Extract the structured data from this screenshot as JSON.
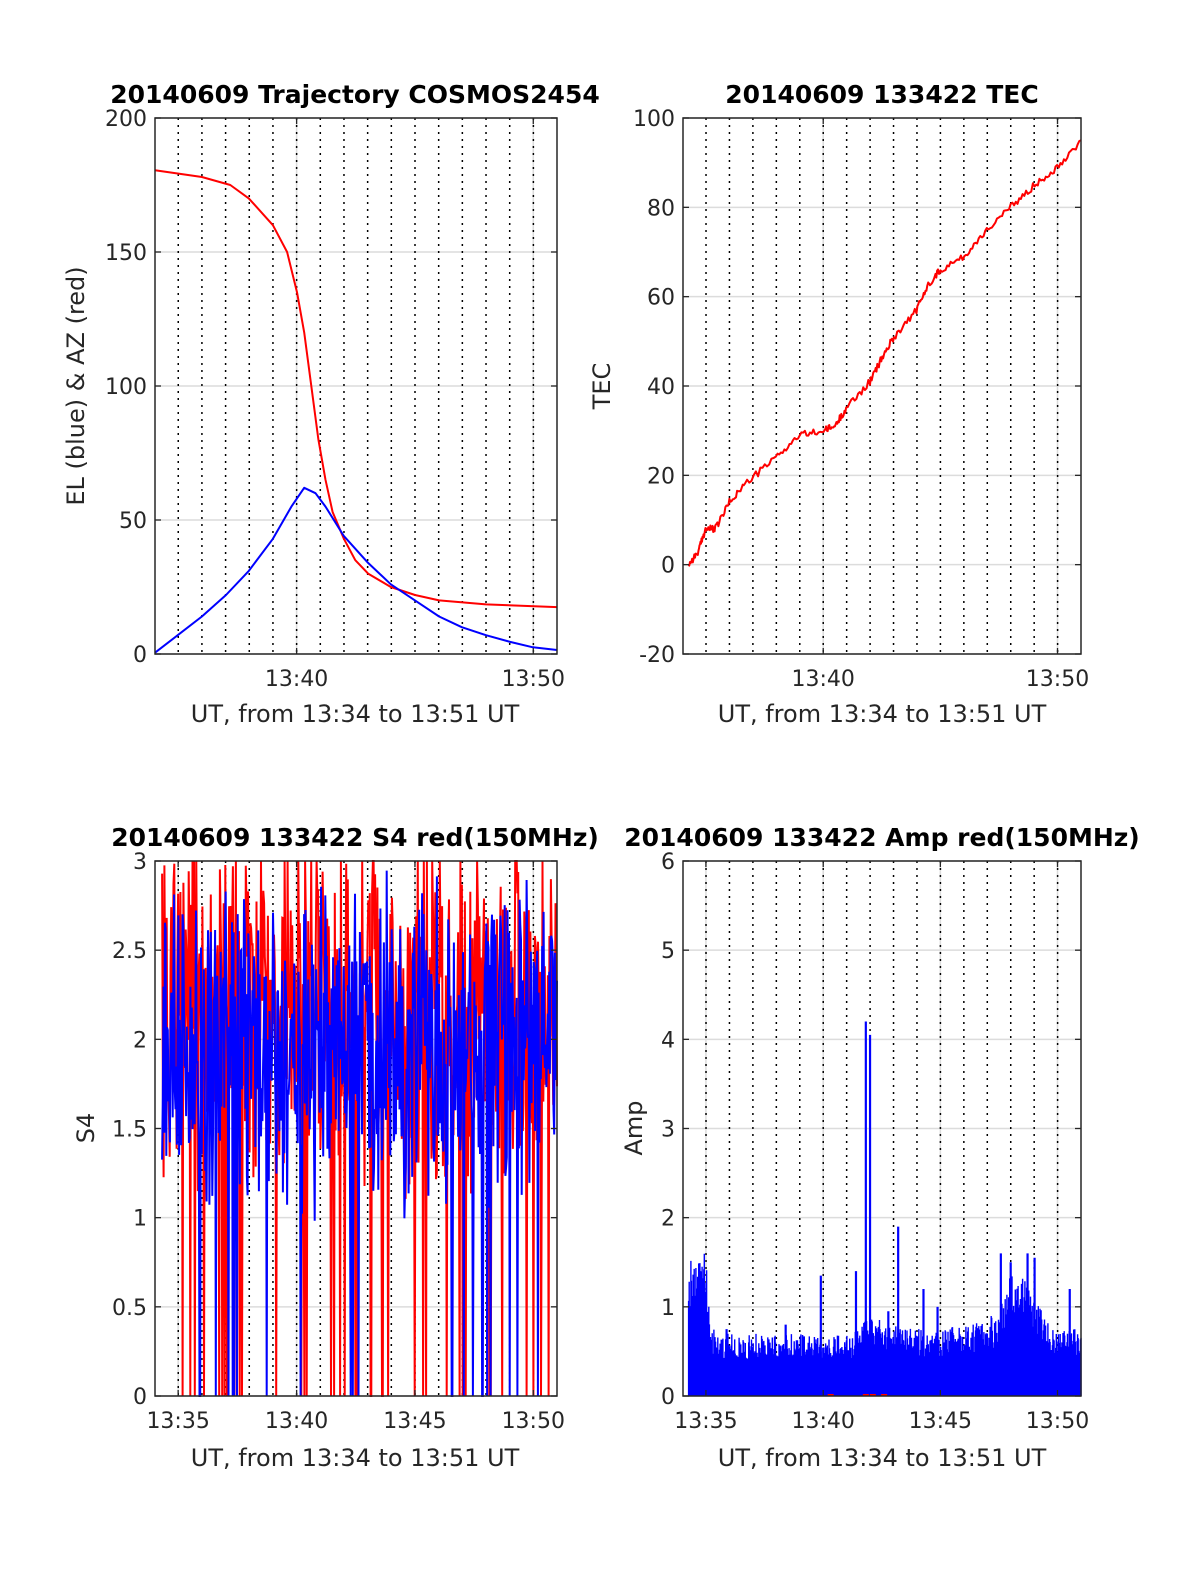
{
  "chart_data": [
    {
      "id": "trajectory",
      "type": "line",
      "title": "20140609 Trajectory COSMOS2454",
      "xlabel": "UT, from 13:34 to 13:51 UT",
      "ylabel": "EL (blue) & AZ (red)",
      "xlim": [
        13.567,
        13.85
      ],
      "ylim": [
        0,
        200
      ],
      "xticks": [
        {
          "value": 13.6667,
          "label": "13:40"
        },
        {
          "value": 13.8333,
          "label": "13:50"
        }
      ],
      "yticks": [
        {
          "value": 0,
          "label": "0"
        },
        {
          "value": 50,
          "label": "50"
        },
        {
          "value": 100,
          "label": "100"
        },
        {
          "value": 150,
          "label": "150"
        },
        {
          "value": 200,
          "label": "200"
        }
      ],
      "grid": true,
      "dotted_verticals": true,
      "series": [
        {
          "color": "#ff0000",
          "points": [
            [
              13.567,
              180.5
            ],
            [
              13.6,
              178
            ],
            [
              13.62,
              175
            ],
            [
              13.633,
              170
            ],
            [
              13.65,
              160
            ],
            [
              13.66,
              150
            ],
            [
              13.667,
              135
            ],
            [
              13.672,
              120
            ],
            [
              13.677,
              100
            ],
            [
              13.682,
              80
            ],
            [
              13.687,
              65
            ],
            [
              13.692,
              53
            ],
            [
              13.7,
              43
            ],
            [
              13.708,
              35
            ],
            [
              13.717,
              30
            ],
            [
              13.733,
              25
            ],
            [
              13.75,
              22
            ],
            [
              13.767,
              20
            ],
            [
              13.8,
              18.5
            ],
            [
              13.85,
              17.5
            ]
          ]
        },
        {
          "color": "#0000ff",
          "points": [
            [
              13.567,
              0.5
            ],
            [
              13.583,
              7
            ],
            [
              13.6,
              14
            ],
            [
              13.617,
              22
            ],
            [
              13.633,
              31
            ],
            [
              13.65,
              43
            ],
            [
              13.663,
              55
            ],
            [
              13.672,
              62
            ],
            [
              13.68,
              60
            ],
            [
              13.687,
              55
            ],
            [
              13.7,
              44
            ],
            [
              13.717,
              34
            ],
            [
              13.733,
              26
            ],
            [
              13.75,
              20
            ],
            [
              13.767,
              14
            ],
            [
              13.783,
              10
            ],
            [
              13.8,
              7
            ],
            [
              13.817,
              4.5
            ],
            [
              13.833,
              2.5
            ],
            [
              13.85,
              1.5
            ]
          ]
        }
      ]
    },
    {
      "id": "tec",
      "type": "line",
      "title": "20140609 133422 TEC",
      "xlabel": "UT, from 13:34 to 13:51 UT",
      "ylabel": "TEC",
      "xlim": [
        13.567,
        13.85
      ],
      "ylim": [
        -20,
        100
      ],
      "xticks": [
        {
          "value": 13.6667,
          "label": "13:40"
        },
        {
          "value": 13.8333,
          "label": "13:50"
        }
      ],
      "yticks": [
        {
          "value": -20,
          "label": "-20"
        },
        {
          "value": 0,
          "label": "0"
        },
        {
          "value": 20,
          "label": "20"
        },
        {
          "value": 40,
          "label": "40"
        },
        {
          "value": 60,
          "label": "60"
        },
        {
          "value": 80,
          "label": "80"
        },
        {
          "value": 100,
          "label": "100"
        }
      ],
      "grid": true,
      "dotted_verticals": true,
      "series": [
        {
          "color": "#ff0000",
          "points": [
            [
              13.571,
              0
            ],
            [
              13.578,
              3
            ],
            [
              13.583,
              8
            ],
            [
              13.59,
              8
            ],
            [
              13.6,
              14
            ],
            [
              13.611,
              18
            ],
            [
              13.633,
              24
            ],
            [
              13.65,
              29
            ],
            [
              13.667,
              30
            ],
            [
              13.675,
              31
            ],
            [
              13.683,
              35
            ],
            [
              13.7,
              41
            ],
            [
              13.708,
              46
            ],
            [
              13.717,
              51
            ],
            [
              13.733,
              57
            ],
            [
              13.742,
              63
            ],
            [
              13.75,
              66
            ],
            [
              13.767,
              69
            ],
            [
              13.783,
              75
            ],
            [
              13.8,
              80
            ],
            [
              13.817,
              85
            ],
            [
              13.833,
              89
            ],
            [
              13.85,
              95
            ]
          ]
        }
      ]
    },
    {
      "id": "s4",
      "type": "line",
      "title": "20140609 133422 S4 red(150MHz)",
      "xlabel": "UT, from 13:34 to 13:51 UT",
      "ylabel": "S4",
      "xlim": [
        13.567,
        13.85
      ],
      "ylim": [
        0,
        3
      ],
      "xticks": [
        {
          "value": 13.5833,
          "label": "13:35"
        },
        {
          "value": 13.6667,
          "label": "13:40"
        },
        {
          "value": 13.75,
          "label": "13:45"
        },
        {
          "value": 13.8333,
          "label": "13:50"
        }
      ],
      "yticks": [
        {
          "value": 0,
          "label": "0"
        },
        {
          "value": 0.5,
          "label": "0.5"
        },
        {
          "value": 1,
          "label": "1"
        },
        {
          "value": 1.5,
          "label": "1.5"
        },
        {
          "value": 2,
          "label": "2"
        },
        {
          "value": 2.5,
          "label": "2.5"
        },
        {
          "value": 3,
          "label": "3"
        }
      ],
      "grid": true,
      "dotted_verticals": true,
      "series": [
        {
          "color": "#ff0000",
          "noise": {
            "seed": 7,
            "x_start": 13.572,
            "x_end": 13.85,
            "n": 520,
            "center": 2.2,
            "spread": 0.8,
            "drop_probability": 0.09
          }
        },
        {
          "color": "#0000ff",
          "noise": {
            "seed": 21,
            "x_start": 13.572,
            "x_end": 13.85,
            "n": 560,
            "center": 1.95,
            "spread": 0.7,
            "drop_probability": 0.05
          }
        }
      ]
    },
    {
      "id": "amp",
      "type": "line",
      "title": "20140609 133422 Amp red(150MHz)",
      "xlabel": "UT, from 13:34 to 13:51 UT",
      "ylabel": "Amp",
      "xlim": [
        13.567,
        13.85
      ],
      "ylim": [
        0,
        6
      ],
      "xticks": [
        {
          "value": 13.5833,
          "label": "13:35"
        },
        {
          "value": 13.6667,
          "label": "13:40"
        },
        {
          "value": 13.75,
          "label": "13:45"
        },
        {
          "value": 13.8333,
          "label": "13:50"
        }
      ],
      "yticks": [
        {
          "value": 0,
          "label": "0"
        },
        {
          "value": 1,
          "label": "1"
        },
        {
          "value": 2,
          "label": "2"
        },
        {
          "value": 3,
          "label": "3"
        },
        {
          "value": 4,
          "label": "4"
        },
        {
          "value": 5,
          "label": "5"
        },
        {
          "value": 6,
          "label": "6"
        }
      ],
      "grid": true,
      "dotted_verticals": true,
      "series": [
        {
          "color": "#0000ff",
          "filled_noise": true,
          "envelope": [
            [
              13.571,
              1.5
            ],
            [
              13.578,
              1.6
            ],
            [
              13.583,
              1.65
            ],
            [
              13.587,
              0.8
            ],
            [
              13.6,
              0.7
            ],
            [
              13.617,
              0.7
            ],
            [
              13.633,
              0.7
            ],
            [
              13.65,
              0.7
            ],
            [
              13.667,
              0.65
            ],
            [
              13.683,
              0.7
            ],
            [
              13.69,
              0.75
            ],
            [
              13.7,
              0.9
            ],
            [
              13.717,
              0.8
            ],
            [
              13.733,
              0.75
            ],
            [
              13.75,
              0.75
            ],
            [
              13.767,
              0.8
            ],
            [
              13.783,
              0.85
            ],
            [
              13.792,
              1.0
            ],
            [
              13.8,
              1.35
            ],
            [
              13.808,
              1.35
            ],
            [
              13.817,
              1.1
            ],
            [
              13.833,
              0.75
            ],
            [
              13.85,
              0.75
            ]
          ],
          "spikes": [
            [
              13.598,
              0.75
            ],
            [
              13.64,
              0.8
            ],
            [
              13.665,
              1.35
            ],
            [
              13.69,
              1.4
            ],
            [
              13.697,
              4.2
            ],
            [
              13.7,
              4.05
            ],
            [
              13.713,
              0.95
            ],
            [
              13.72,
              1.9
            ],
            [
              13.738,
              1.2
            ],
            [
              13.748,
              1.0
            ],
            [
              13.793,
              1.6
            ],
            [
              13.8,
              1.5
            ],
            [
              13.812,
              1.6
            ],
            [
              13.817,
              1.55
            ],
            [
              13.842,
              1.2
            ]
          ]
        },
        {
          "color": "#ff0000",
          "marks": [
            13.672,
            13.697,
            13.702,
            13.71
          ]
        }
      ]
    }
  ]
}
